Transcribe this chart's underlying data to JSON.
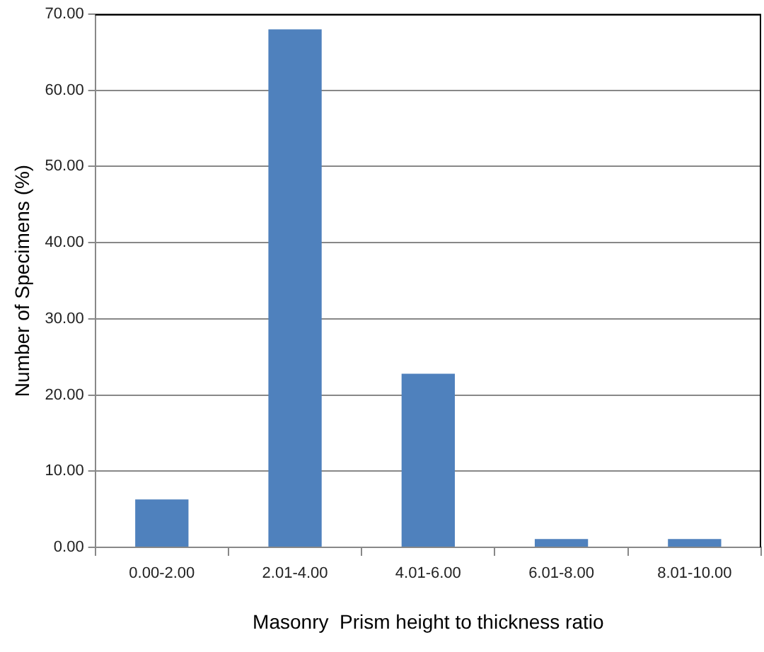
{
  "chart_data": {
    "type": "bar",
    "xlabel": "Masonry  Prism height to thickness ratio",
    "ylabel": "Number of Specimens (%)",
    "categories": [
      "0.00-2.00",
      "2.01-4.00",
      "4.01-6.00",
      "6.01-8.00",
      "8.01-10.00"
    ],
    "values": [
      6.3,
      68.0,
      22.8,
      1.1,
      1.1
    ],
    "color": "#4f81bd",
    "ylim": [
      0,
      70
    ],
    "yticks": [
      {
        "value": 0,
        "label": "0.00"
      },
      {
        "value": 10,
        "label": "10.00"
      },
      {
        "value": 20,
        "label": "20.00"
      },
      {
        "value": 30,
        "label": "30.00"
      },
      {
        "value": 40,
        "label": "40.00"
      },
      {
        "value": 50,
        "label": "50.00"
      },
      {
        "value": 60,
        "label": "60.00"
      },
      {
        "value": 70,
        "label": "70.00"
      }
    ],
    "grid": "y",
    "legend": false
  }
}
